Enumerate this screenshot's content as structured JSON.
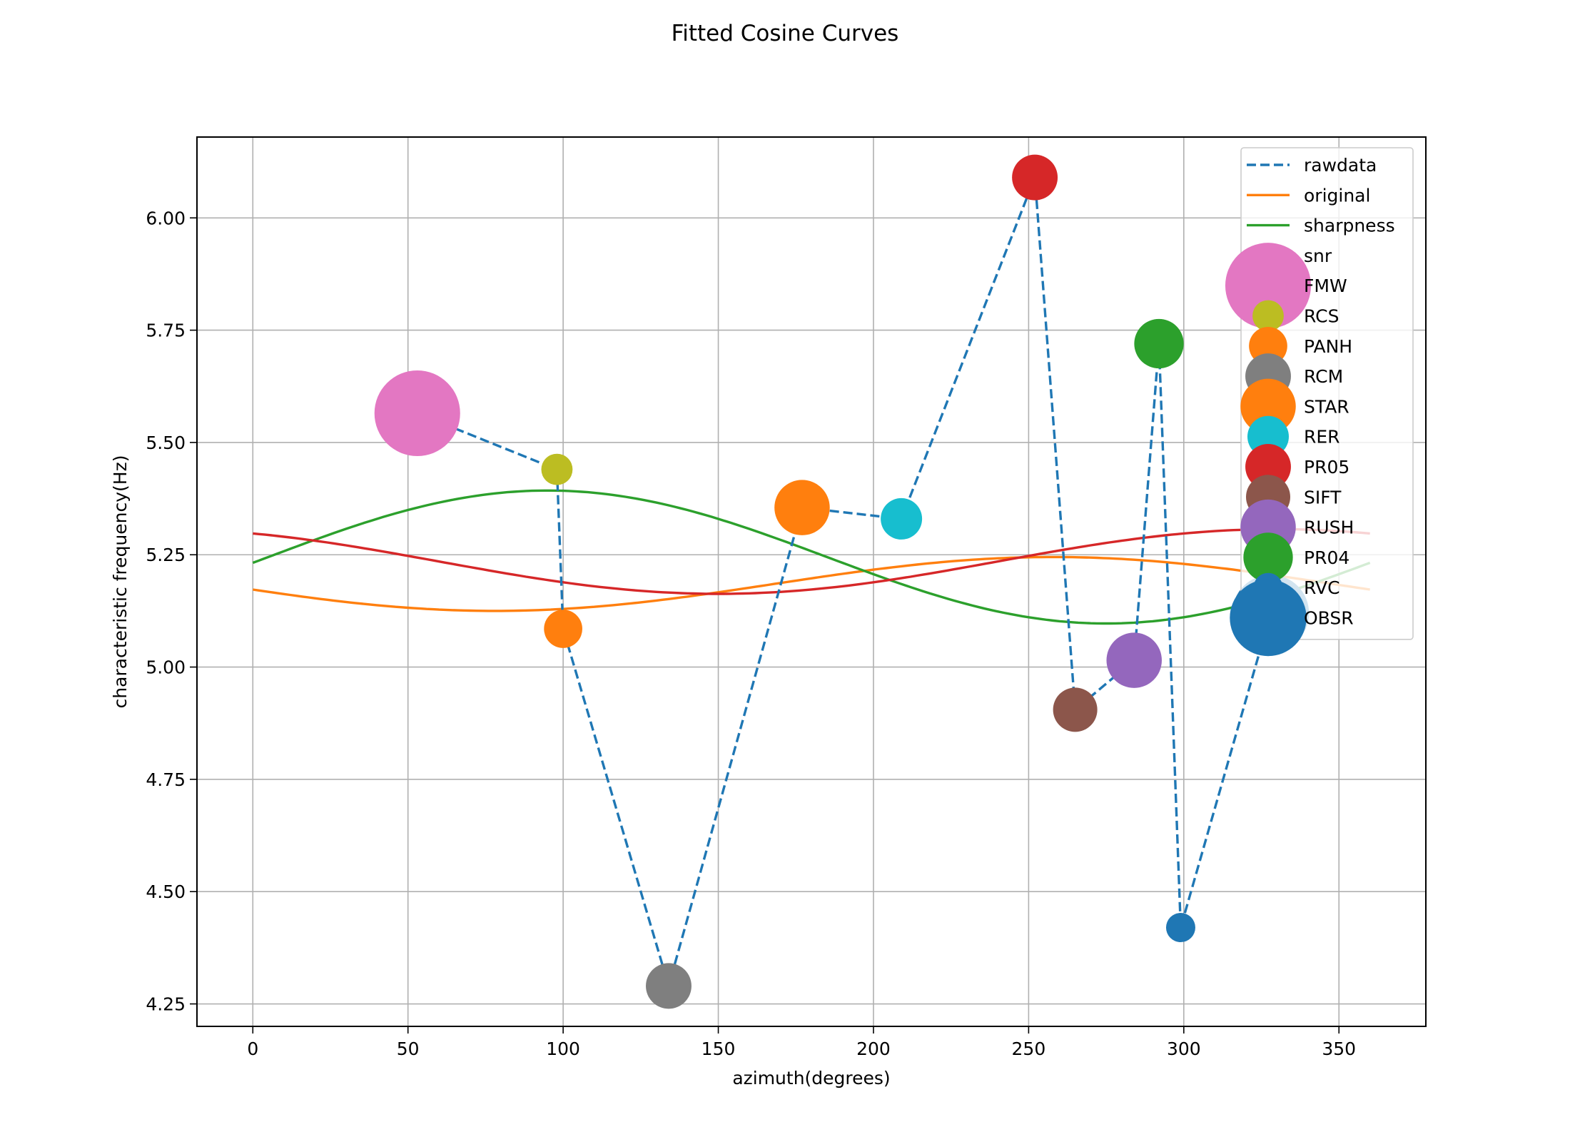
{
  "chart_data": {
    "type": "scatter",
    "title": "Fitted Cosine Curves",
    "xlabel": "azimuth(degrees)",
    "ylabel": "characteristic frequency(Hz)",
    "xlim": [
      -18,
      378
    ],
    "ylim": [
      4.2,
      6.18
    ],
    "xticks": [
      0,
      50,
      100,
      150,
      200,
      250,
      300,
      350
    ],
    "xtick_labels": [
      "0",
      "50",
      "100",
      "150",
      "200",
      "250",
      "300",
      "350"
    ],
    "yticks": [
      4.25,
      4.5,
      4.75,
      5.0,
      5.25,
      5.5,
      5.75,
      6.0
    ],
    "ytick_labels": [
      "4.25",
      "4.50",
      "4.75",
      "5.00",
      "5.25",
      "5.50",
      "5.75",
      "6.00"
    ],
    "grid": true,
    "legend_position": "top-right",
    "rawdata": {
      "name": "rawdata",
      "color": "#1f77b4",
      "x": [
        53,
        98,
        100,
        134,
        177,
        209,
        252,
        265,
        284,
        292,
        299,
        328
      ],
      "y": [
        5.565,
        5.44,
        5.085,
        4.29,
        5.355,
        5.33,
        6.09,
        4.905,
        5.015,
        5.72,
        4.42,
        5.12
      ]
    },
    "curves": [
      {
        "name": "original",
        "color": "#ff7f0e",
        "mean": 5.185,
        "amp": 0.06,
        "phase": 258
      },
      {
        "name": "sharpness",
        "color": "#2ca02c",
        "mean": 5.245,
        "amp": 0.148,
        "phase": 95
      },
      {
        "name": "",
        "color": "#d62728",
        "mean": 5.235,
        "amp": 0.072,
        "phase": 330
      }
    ],
    "stations_heading": "snr",
    "stations": [
      {
        "name": "FMW",
        "x": 53,
        "y": 5.565,
        "snr": 60,
        "color": "#e377c2"
      },
      {
        "name": "RCS",
        "x": 98,
        "y": 5.44,
        "snr": 8,
        "color": "#bcbd22"
      },
      {
        "name": "PANH",
        "x": 100,
        "y": 5.085,
        "snr": 12,
        "color": "#ff7f0e"
      },
      {
        "name": "RCM",
        "x": 134,
        "y": 4.29,
        "snr": 17,
        "color": "#7f7f7f"
      },
      {
        "name": "STAR",
        "x": 177,
        "y": 5.355,
        "snr": 25,
        "color": "#ff7f0e"
      },
      {
        "name": "RER",
        "x": 209,
        "y": 5.33,
        "snr": 14,
        "color": "#17becf"
      },
      {
        "name": "PR05",
        "x": 252,
        "y": 6.09,
        "snr": 17,
        "color": "#d62728"
      },
      {
        "name": "SIFT",
        "x": 265,
        "y": 4.905,
        "snr": 16,
        "color": "#8c564b"
      },
      {
        "name": "RUSH",
        "x": 284,
        "y": 5.015,
        "snr": 25,
        "color": "#9467bd"
      },
      {
        "name": "PR04",
        "x": 292,
        "y": 5.72,
        "snr": 20,
        "color": "#2ca02c"
      },
      {
        "name": "RVC",
        "x": 299,
        "y": 4.42,
        "snr": 7,
        "color": "#1f77b4"
      },
      {
        "name": "OBSR",
        "x": 328,
        "y": 5.12,
        "snr": 48,
        "color": "#1f77b4"
      }
    ]
  }
}
